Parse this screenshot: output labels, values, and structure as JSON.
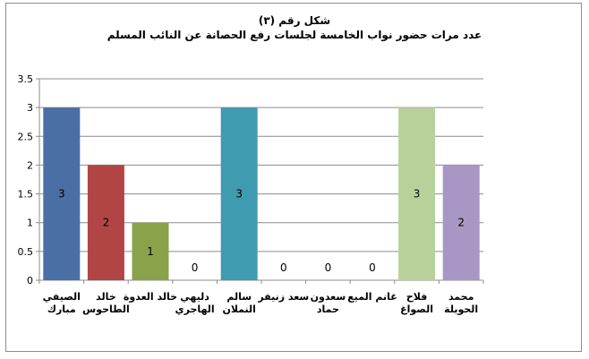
{
  "title_line1": "شكل رقم (٣)",
  "title_line2": "عدد مرات حضور نواب الخامسة لجلسات رفع الحصانة عن النائب المسلم",
  "chart_data": {
    "type": "bar",
    "title": "شكل رقم (٣)",
    "subtitle": "عدد مرات حضور نواب الخامسة لجلسات رفع الحصانة عن النائب المسلم",
    "categories": [
      [
        "الصيفي",
        "مبارك"
      ],
      [
        "خالد",
        "الطاحوس"
      ],
      [
        "خالد العدوة"
      ],
      [
        "دليهي",
        "الهاجري"
      ],
      [
        "سالم",
        "النملان"
      ],
      [
        "سعد زنيفر"
      ],
      [
        "سعدون",
        "حماد"
      ],
      [
        "غانم الميع"
      ],
      [
        "فلاح",
        "الصواغ"
      ],
      [
        "محمد",
        "الحويلة"
      ]
    ],
    "values": [
      3,
      2,
      1,
      0,
      3,
      0,
      0,
      0,
      3,
      2
    ],
    "colors": [
      "#4a6fa5",
      "#b04543",
      "#8aa34b",
      "#7b5f96",
      "#3e9bb0",
      "#e0883a",
      "#4a6fa5",
      "#b04543",
      "#b8d19a",
      "#a897c4"
    ],
    "yticks": [
      "0",
      "0.5",
      "1",
      "1.5",
      "2",
      "2.5",
      "3",
      "3.5"
    ],
    "ylim": [
      0,
      3.5
    ],
    "grid": true,
    "legend": "none",
    "data_labels": true
  }
}
